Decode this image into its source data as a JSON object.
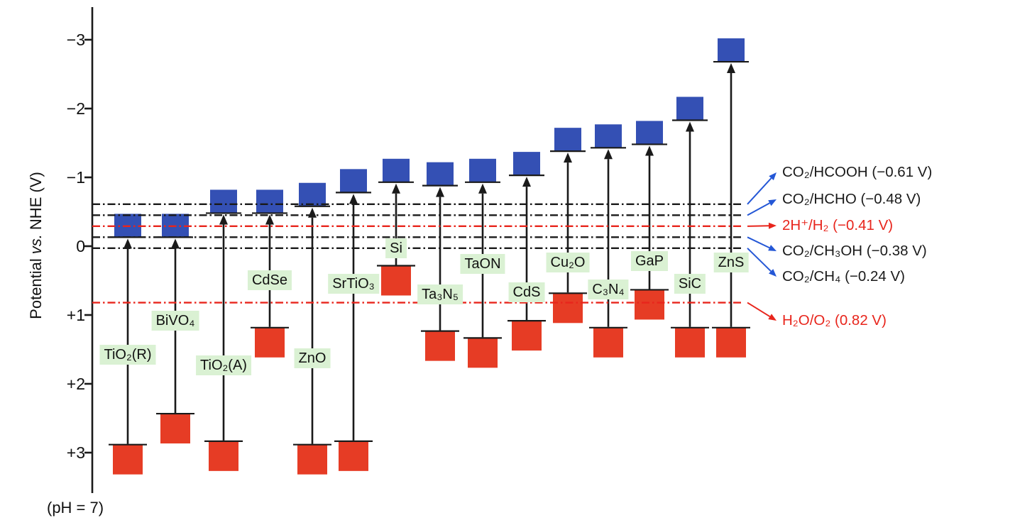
{
  "chart_data": {
    "type": "bar",
    "variant": "semiconductor-band-edge-diagram",
    "y_axis": {
      "label_prefix": "Potential",
      "label_vs": "vs.",
      "label_suffix": "NHE (V)",
      "ticks": [
        -3,
        -2,
        -1,
        0,
        1,
        2,
        3
      ],
      "tick_labels": [
        "−3",
        "−2",
        "−1",
        "0",
        "+1",
        "+2",
        "+3"
      ],
      "inverted": true,
      "ylim": [
        -3.5,
        3.6
      ],
      "unit": "V"
    },
    "ph_note": "(pH = 7)",
    "semiconductors": [
      {
        "label": "TiO₂(R)",
        "cb": -0.3,
        "vb": 3.1
      },
      {
        "label": "BiVO₄",
        "cb": -0.3,
        "vb": 2.65
      },
      {
        "label": "TiO₂(A)",
        "cb": -0.65,
        "vb": 3.05
      },
      {
        "label": "CdSe",
        "cb": -0.65,
        "vb": 1.4
      },
      {
        "label": "ZnO",
        "cb": -0.75,
        "vb": 3.1
      },
      {
        "label": "SrTiO₃",
        "cb": -0.95,
        "vb": 3.05
      },
      {
        "label": "Si",
        "cb": -1.1,
        "vb": 0.5
      },
      {
        "label": "Ta₃N₅",
        "cb": -1.05,
        "vb": 1.45
      },
      {
        "label": "TaON",
        "cb": -1.1,
        "vb": 1.55
      },
      {
        "label": "CdS",
        "cb": -1.2,
        "vb": 1.3
      },
      {
        "label": "Cu₂O",
        "cb": -1.55,
        "vb": 0.9
      },
      {
        "label": "C₃N₄",
        "cb": -1.6,
        "vb": 1.4
      },
      {
        "label": "GaP",
        "cb": -1.65,
        "vb": 0.85
      },
      {
        "label": "SiC",
        "cb": -2.0,
        "vb": 1.4
      },
      {
        "label": "ZnS",
        "cb": -2.85,
        "vb": 1.4
      }
    ],
    "redox_levels": [
      {
        "label": "CO₂/HCOOH (−0.61 V)",
        "potential": -0.61,
        "line": "black",
        "arrow": "blue",
        "text": "black"
      },
      {
        "label": "CO₂/HCHO (−0.48 V)",
        "potential": -0.48,
        "line": "black",
        "arrow": "blue",
        "text": "black"
      },
      {
        "label": "2H⁺/H₂ (−0.41 V)",
        "potential": -0.41,
        "line": "red",
        "arrow": "red",
        "text": "red"
      },
      {
        "label": "CO₂/CH₃OH (−0.38 V)",
        "potential": -0.38,
        "line": "black",
        "arrow": "blue",
        "text": "black"
      },
      {
        "label": "CO₂/CH₄ (−0.24 V)",
        "potential": -0.24,
        "line": "black",
        "arrow": "blue",
        "text": "black"
      },
      {
        "label": "H₂O/O₂ (0.82 V)",
        "potential": 0.82,
        "line": "red",
        "arrow": "red",
        "text": "red"
      }
    ],
    "colors": {
      "conduction_band_blue": "#3450b4",
      "valence_band_red": "#e63c25",
      "label_chip_green": "#daf1d3",
      "black": "#1a1a1a",
      "red": "#e8251c",
      "blue": "#2457d6"
    }
  }
}
